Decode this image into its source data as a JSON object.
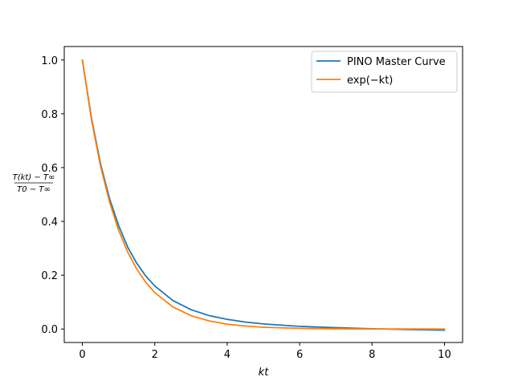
{
  "chart_data": {
    "type": "line",
    "xlabel": "kt",
    "ylabel": {
      "numerator": "T(kt) − T∞",
      "denominator": "T0 − T∞"
    },
    "xlim": [
      -0.5,
      10.5
    ],
    "ylim": [
      -0.05,
      1.05
    ],
    "xticks": [
      0,
      2,
      4,
      6,
      8,
      10
    ],
    "xtick_labels": [
      "0",
      "2",
      "4",
      "6",
      "8",
      "10"
    ],
    "yticks": [
      0.0,
      0.2,
      0.4,
      0.6,
      0.8,
      1.0
    ],
    "ytick_labels": [
      "0.0",
      "0.2",
      "0.4",
      "0.6",
      "0.8",
      "1.0"
    ],
    "grid": false,
    "legend": "top-right",
    "series": [
      {
        "name": "PINO Master Curve",
        "color": "#1f77b4",
        "x": [
          0,
          0.25,
          0.5,
          0.75,
          1,
          1.25,
          1.5,
          1.75,
          2,
          2.5,
          3,
          3.5,
          4,
          4.5,
          5,
          6,
          7,
          8,
          9,
          10
        ],
        "y": [
          1.0,
          0.785,
          0.615,
          0.485,
          0.385,
          0.305,
          0.245,
          0.197,
          0.16,
          0.106,
          0.072,
          0.05,
          0.036,
          0.026,
          0.019,
          0.01,
          0.005,
          0.001,
          -0.002,
          -0.004
        ]
      },
      {
        "name": "exp(−kt)",
        "color": "#ff7f0e",
        "x": [
          0,
          0.25,
          0.5,
          0.75,
          1,
          1.25,
          1.5,
          1.75,
          2,
          2.5,
          3,
          3.5,
          4,
          4.5,
          5,
          6,
          7,
          8,
          9,
          10
        ],
        "y": [
          1.0,
          0.7788,
          0.6065,
          0.4724,
          0.3679,
          0.2865,
          0.2231,
          0.1738,
          0.1353,
          0.0821,
          0.0498,
          0.0302,
          0.0183,
          0.0111,
          0.0067,
          0.0025,
          0.0009,
          0.0003,
          0.0001,
          0.0
        ]
      }
    ]
  }
}
